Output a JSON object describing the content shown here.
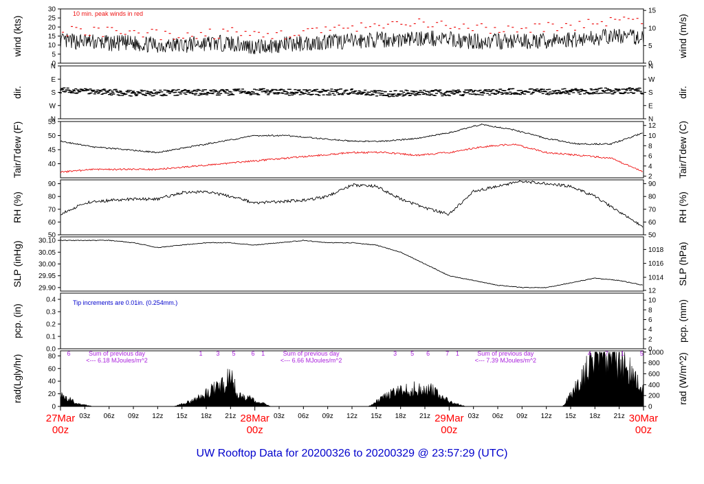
{
  "footer_title": "UW Rooftop Data for 20200326  to  20200329 @ 23:57:29  (UTC)",
  "colors": {
    "frame": "#000000",
    "series_black": "#000000",
    "series_red": "#ee1111",
    "date_label": "#ff0000",
    "footer_title": "#0000cc",
    "rain_note": "#0000cc",
    "radiation_note": "#aa22dd"
  },
  "time_axis": {
    "hour_ticks": [
      "03z",
      "06z",
      "09z",
      "12z",
      "15z",
      "18z",
      "21z",
      "03z",
      "06z",
      "09z",
      "12z",
      "15z",
      "18z",
      "21z",
      "03z",
      "06z",
      "09z",
      "12z",
      "15z",
      "18z",
      "21z"
    ],
    "day_labels": [
      {
        "date": "27Mar",
        "hour": "00z"
      },
      {
        "date": "28Mar",
        "hour": "00z"
      },
      {
        "date": "29Mar",
        "hour": "00z"
      },
      {
        "date": "30Mar",
        "hour": "00z"
      }
    ]
  },
  "chart_data": [
    {
      "type": "line",
      "name": "wind",
      "left_axis": {
        "label": "wind (kts)",
        "ticks": [
          "0",
          "5",
          "10",
          "15",
          "20",
          "25",
          "30"
        ],
        "range": [
          0,
          30
        ]
      },
      "right_axis": {
        "label": "wind (m/s)",
        "ticks": [
          "0",
          "5",
          "10",
          "15"
        ]
      },
      "annotation": "10 min. peak winds in red",
      "x_unit": "hours since 27Mar 00z",
      "series_sustained": {
        "x": [
          0,
          3,
          6,
          9,
          12,
          15,
          18,
          21,
          24,
          27,
          30,
          33,
          36,
          39,
          42,
          45,
          48,
          51,
          54,
          57,
          60,
          63,
          66,
          69,
          72
        ],
        "y": [
          12,
          12,
          11,
          11,
          10,
          10,
          11,
          11,
          9,
          10,
          11,
          12,
          12,
          13,
          13,
          14,
          13,
          12,
          12,
          12,
          12,
          13,
          14,
          15,
          14
        ]
      },
      "series_peak": {
        "x": [
          0,
          3,
          6,
          9,
          12,
          15,
          18,
          21,
          24,
          27,
          30,
          33,
          36,
          39,
          42,
          45,
          48,
          51,
          54,
          57,
          60,
          63,
          66,
          69,
          72
        ],
        "y": [
          18,
          18,
          17,
          16,
          16,
          15,
          16,
          17,
          15,
          16,
          17,
          19,
          19,
          20,
          21,
          22,
          20,
          19,
          19,
          19,
          20,
          21,
          22,
          24,
          23
        ]
      }
    },
    {
      "type": "scatter",
      "name": "wind direction",
      "left_axis": {
        "label": "dir.",
        "ticks": [
          "N",
          "E",
          "S",
          "W",
          "N"
        ]
      },
      "right_axis": {
        "label": "dir.",
        "ticks": [
          "N",
          "E",
          "S",
          "W",
          "N"
        ]
      },
      "x_unit": "hours since 27Mar 00z",
      "series": {
        "x": [
          0,
          4,
          8,
          12,
          16,
          20,
          24,
          28,
          32,
          36,
          40,
          44,
          48,
          52,
          56,
          60,
          64,
          68,
          72
        ],
        "y_degrees": [
          190,
          190,
          175,
          175,
          180,
          180,
          185,
          180,
          180,
          185,
          170,
          180,
          175,
          180,
          185,
          185,
          185,
          190,
          190
        ]
      }
    },
    {
      "type": "line",
      "name": "temperature",
      "left_axis": {
        "label": "Tair/Tdew (F)",
        "ticks": [
          "40",
          "45",
          "50",
          "55"
        ],
        "range": [
          35,
          55
        ]
      },
      "right_axis": {
        "label": "Tair/Tdew (C)",
        "ticks": [
          "2",
          "4",
          "6",
          "8",
          "10",
          "12"
        ]
      },
      "x_unit": "hours since 27Mar 00z",
      "series_air": {
        "x": [
          0,
          4,
          8,
          12,
          16,
          20,
          24,
          28,
          32,
          36,
          40,
          44,
          48,
          52,
          56,
          60,
          64,
          68,
          72
        ],
        "y": [
          48,
          46,
          45,
          44,
          46,
          48,
          50,
          50,
          49,
          48,
          48,
          49,
          51,
          54,
          52,
          49,
          47,
          47,
          51
        ]
      },
      "series_dewpoint": {
        "x": [
          0,
          4,
          8,
          12,
          16,
          20,
          24,
          28,
          32,
          36,
          40,
          44,
          48,
          52,
          56,
          60,
          64,
          68,
          72
        ],
        "y": [
          37,
          38,
          38,
          38,
          39,
          40,
          41,
          42,
          43,
          44,
          44,
          43,
          44,
          46,
          47,
          44,
          43,
          42,
          37
        ]
      }
    },
    {
      "type": "line",
      "name": "relative humidity",
      "left_axis": {
        "label": "RH (%)",
        "ticks": [
          "50",
          "60",
          "70",
          "80",
          "90"
        ],
        "range": [
          50,
          93
        ]
      },
      "right_axis": {
        "label": "RH (%)",
        "ticks": [
          "50",
          "60",
          "70",
          "80",
          "90"
        ]
      },
      "x_unit": "hours since 27Mar 00z",
      "series": {
        "x": [
          0,
          3,
          6,
          9,
          12,
          15,
          18,
          21,
          24,
          27,
          30,
          33,
          36,
          39,
          42,
          45,
          48,
          51,
          54,
          57,
          60,
          63,
          66,
          69,
          72
        ],
        "y": [
          66,
          75,
          77,
          78,
          78,
          83,
          84,
          80,
          75,
          76,
          77,
          80,
          89,
          88,
          78,
          71,
          66,
          84,
          88,
          92,
          90,
          88,
          80,
          68,
          56
        ]
      }
    },
    {
      "type": "line",
      "name": "sea level pressure",
      "left_axis": {
        "label": "SLP (inHg)",
        "ticks": [
          "29.90",
          "29.95",
          "30.00",
          "30.05",
          "30.10"
        ],
        "range": [
          29.885,
          30.115
        ]
      },
      "right_axis": {
        "label": "SLP (hPa)",
        "ticks": [
          "1014",
          "1016",
          "1018"
        ]
      },
      "x_unit": "hours since 27Mar 00z",
      "series": {
        "x": [
          0,
          3,
          6,
          9,
          12,
          15,
          18,
          21,
          24,
          27,
          30,
          33,
          36,
          39,
          42,
          45,
          48,
          51,
          54,
          57,
          60,
          63,
          66,
          69,
          72
        ],
        "y": [
          30.1,
          30.1,
          30.1,
          30.09,
          30.07,
          30.08,
          30.09,
          30.09,
          30.08,
          30.09,
          30.1,
          30.09,
          30.09,
          30.08,
          30.05,
          30.0,
          29.95,
          29.93,
          29.91,
          29.9,
          29.9,
          29.92,
          29.94,
          29.93,
          29.91
        ]
      }
    },
    {
      "type": "line",
      "name": "precipitation",
      "left_axis": {
        "label": "pcp. (in)",
        "ticks": [
          "0.0",
          "0.1",
          "0.2",
          "0.3",
          "0.4"
        ],
        "range": [
          0,
          0.45
        ]
      },
      "right_axis": {
        "label": "pcp. (mm)",
        "ticks": [
          "0",
          "2",
          "4",
          "6",
          "8",
          "10",
          "12"
        ]
      },
      "annotation": "Tip increments are 0.01in. (0.254mm.)",
      "x_unit": "hours since 27Mar 00z",
      "series": {
        "x": [
          0,
          72
        ],
        "y": [
          0,
          0
        ]
      }
    },
    {
      "type": "area",
      "name": "solar radiation",
      "left_axis": {
        "label": "rad(Lgly/hr)",
        "ticks": [
          "0",
          "20",
          "40",
          "60",
          "80"
        ],
        "range": [
          0,
          88
        ]
      },
      "right_axis": {
        "label": "rad (W/m^2)",
        "ticks": [
          "0",
          "200",
          "400",
          "600",
          "800",
          "1000"
        ]
      },
      "x_unit": "hours since 27Mar 00z",
      "daily_totals": [
        {
          "hour_marks": [
            "6",
            "1",
            "3",
            "5",
            "6"
          ],
          "caption": "Sum of previous day",
          "total": "<--- 6.18 MJoules/m^2"
        },
        {
          "hour_marks": [
            "1",
            "3",
            "5",
            "6",
            "7"
          ],
          "caption": "Sum of previous day",
          "total": "<--- 6.66 MJoules/m^2"
        },
        {
          "hour_marks": [
            "1",
            "4",
            "7",
            "1",
            "5"
          ],
          "caption": "Sum of previous day",
          "total": "<--- 7.39 MJoules/m^2"
        }
      ],
      "series": {
        "x": [
          0,
          2,
          4,
          14,
          16,
          18,
          20,
          21,
          22,
          24,
          26,
          38,
          40,
          42,
          44,
          46,
          48,
          50,
          62,
          64,
          66,
          68,
          70,
          72
        ],
        "y": [
          18,
          5,
          0,
          0,
          8,
          20,
          35,
          45,
          18,
          10,
          0,
          0,
          15,
          25,
          28,
          25,
          8,
          0,
          0,
          35,
          80,
          78,
          60,
          25
        ]
      }
    }
  ]
}
